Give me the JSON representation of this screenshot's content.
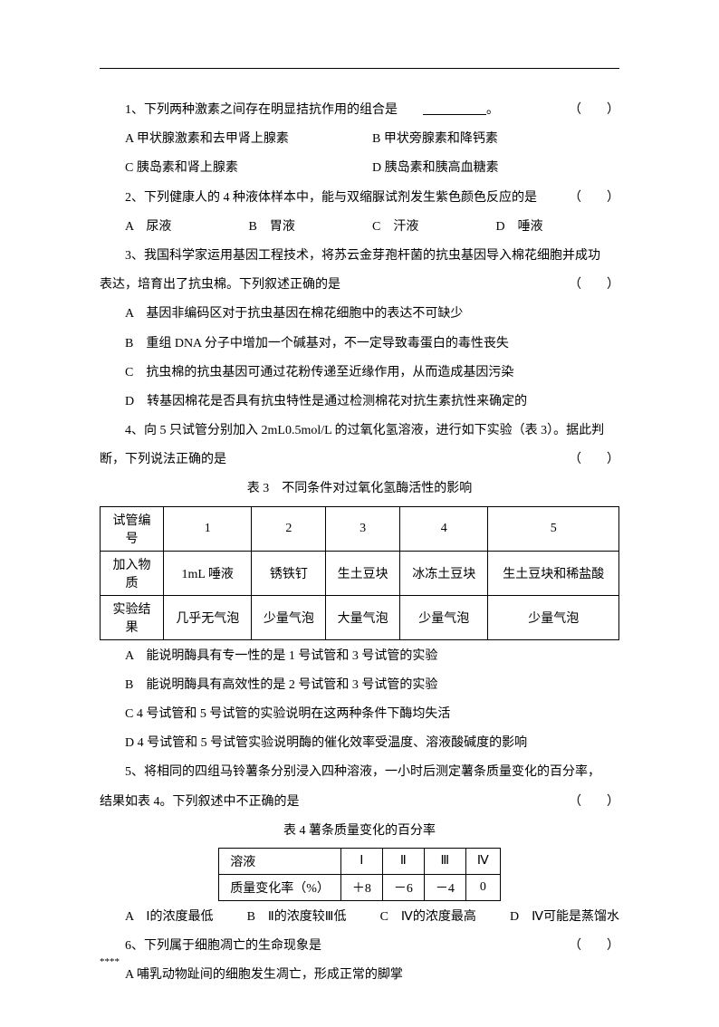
{
  "q1": {
    "text_before": "1、下列两种激素之间存在明显拮抗作用的组合是",
    "text_after": "。",
    "paren": "（　　）",
    "opts": {
      "A": "A 甲状腺激素和去甲肾上腺素",
      "B": "B 甲状旁腺素和降钙素",
      "C": "C 胰岛素和肾上腺素",
      "D": "D 胰岛素和胰高血糖素"
    }
  },
  "q2": {
    "text": "2、下列健康人的 4 种液体样本中，能与双缩脲试剂发生紫色颜色反应的是",
    "paren": "（　　）",
    "opts": {
      "A": "A　尿液",
      "B": "B　胃液",
      "C": "C　汗液",
      "D": "D　唾液"
    }
  },
  "q3": {
    "line1": "3、我国科学家运用基因工程技术，将苏云金芽孢杆菌的抗虫基因导入棉花细胞并成功",
    "line2": "表达，培育出了抗虫棉。下列叙述正确的是",
    "paren": "（　　）",
    "opts": {
      "A": "A　基因非编码区对于抗虫基因在棉花细胞中的表达不可缺少",
      "B": "B　重组 DNA 分子中增加一个碱基对，不一定导致毒蛋白的毒性丧失",
      "C": "C　抗虫棉的抗虫基因可通过花粉传递至近缘作用，从而造成基因污染",
      "D": "D　转基因棉花是否具有抗虫特性是通过检测棉花对抗生素抗性来确定的"
    }
  },
  "q4": {
    "line1": "4、向 5 只试管分别加入 2mL0.5mol/L 的过氧化氢溶液，进行如下实验（表 3）。据此判",
    "line2": "断，下列说法正确的是",
    "paren": "（　　）",
    "table_caption": "表 3　不同条件对过氧化氢酶活性的影响",
    "table": {
      "headers": [
        "试管编号",
        "1",
        "2",
        "3",
        "4",
        "5"
      ],
      "rows": [
        [
          "加入物质",
          "1mL 唾液",
          "锈铁钉",
          "生土豆块",
          "冰冻土豆块",
          "生土豆块和稀盐酸"
        ],
        [
          "实验结果",
          "几乎无气泡",
          "少量气泡",
          "大量气泡",
          "少量气泡",
          "少量气泡"
        ]
      ]
    },
    "opts": {
      "A": "A　能说明酶具有专一性的是 1 号试管和 3 号试管的实验",
      "B": "B　能说明酶具有高效性的是 2 号试管和 3 号试管的实验",
      "C": "C 4 号试管和 5 号试管的实验说明在这两种条件下酶均失活",
      "D": "D 4 号试管和 5 号试管实验说明酶的催化效率受温度、溶液酸碱度的影响"
    }
  },
  "q5": {
    "line1": "5、将相同的四组马铃薯条分别浸入四种溶液，一小时后测定薯条质量变化的百分率，",
    "line2": "结果如表 4。下列叙述中不正确的是",
    "paren": "（　　）",
    "table_caption": "表 4 薯条质量变化的百分率",
    "table": {
      "headers": [
        "溶液",
        "Ⅰ",
        "Ⅱ",
        "Ⅲ",
        "Ⅳ"
      ],
      "rows": [
        [
          "质量变化率（%）",
          "＋8",
          "－6",
          "－4",
          "0"
        ]
      ]
    },
    "opts": {
      "A": "A　Ⅰ的浓度最低",
      "B": "B　Ⅱ的浓度较Ⅲ低",
      "C": "C　Ⅳ的浓度最高",
      "D": "D　Ⅳ可能是蒸馏水"
    }
  },
  "q6": {
    "text": "6、下列属于细胞凋亡的生命现象是",
    "paren": "（　　）",
    "opts": {
      "A": "A 哺乳动物趾间的细胞发生凋亡，形成正常的脚掌"
    }
  },
  "footer": "****"
}
